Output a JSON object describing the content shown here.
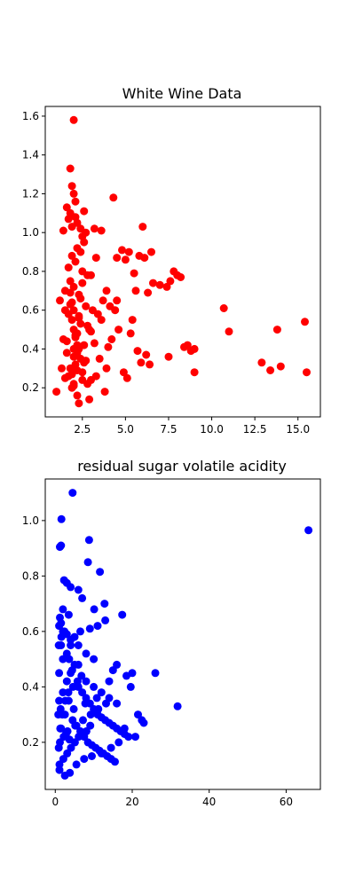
{
  "chart_data": [
    {
      "type": "scatter",
      "title": "White Wine Data",
      "xlabel": "",
      "ylabel": "",
      "xlim": [
        0.35,
        16.3
      ],
      "ylim": [
        0.05,
        1.65
      ],
      "xticks": [
        2.5,
        5.0,
        7.5,
        10.0,
        12.5,
        15.0
      ],
      "xtick_labels": [
        "2.5",
        "5.0",
        "7.5",
        "10.0",
        "12.5",
        "15.0"
      ],
      "yticks": [
        0.2,
        0.4,
        0.6,
        0.8,
        1.0,
        1.2,
        1.4,
        1.6
      ],
      "ytick_labels": [
        "0.2",
        "0.4",
        "0.6",
        "0.8",
        "1.0",
        "1.2",
        "1.4",
        "1.6"
      ],
      "color": "#ff0000",
      "grid": false,
      "legend": "none",
      "x": [
        2.0,
        1.8,
        1.9,
        2.0,
        2.1,
        1.6,
        1.7,
        2.6,
        1.8,
        2.1,
        4.3,
        2.2,
        1.9,
        1.4,
        2.4,
        3.2,
        2.7,
        2.5,
        3.6,
        6.0,
        4.8,
        5.2,
        6.5,
        5.8,
        6.1,
        4.5,
        5.0,
        7.8,
        8.0,
        5.5,
        6.6,
        7.0,
        7.4,
        7.6,
        8.2,
        5.6,
        6.3,
        10.7,
        11.0,
        15.4,
        13.8,
        12.9,
        13.4,
        14.0,
        15.5,
        8.6,
        8.4,
        9.0,
        8.8,
        9.0,
        7.5,
        5.7,
        6.2,
        6.4,
        5.9,
        5.1,
        4.9,
        3.9,
        3.8,
        4.0,
        3.5,
        1.0,
        1.3,
        1.5,
        2.8,
        3.0,
        3.3,
        4.2,
        4.6,
        5.3,
        5.4,
        4.4,
        3.7,
        2.3,
        2.9,
        1.9,
        2.2,
        2.0,
        1.7,
        1.8,
        2.5,
        2.4,
        2.1,
        2.3,
        2.6,
        1.6,
        1.4,
        2.0,
        2.2,
        1.9,
        2.8,
        3.1,
        3.4,
        2.7,
        1.2,
        1.5,
        2.0,
        2.3,
        1.8,
        2.5,
        3.0,
        2.1,
        1.9,
        2.4,
        2.2,
        2.6,
        1.7,
        2.0,
        2.3,
        2.9,
        1.6,
        2.1,
        3.2,
        2.4,
        1.8,
        2.0,
        2.7,
        2.2,
        1.9,
        2.5,
        3.6,
        4.1,
        4.5,
        3.9,
        2.8,
        3.3,
        2.0,
        1.7,
        2.2,
        2.4,
        1.9,
        2.1,
        2.6,
        2.0,
        2.3,
        1.8,
        2.5,
        3.0,
        1.5,
        2.2
      ],
      "y": [
        1.58,
        1.33,
        1.24,
        1.2,
        1.16,
        1.13,
        1.07,
        1.11,
        1.1,
        1.08,
        1.18,
        1.05,
        1.03,
        1.01,
        1.02,
        1.02,
        1.0,
        0.98,
        1.01,
        1.03,
        0.91,
        0.9,
        0.9,
        0.88,
        0.87,
        0.87,
        0.86,
        0.8,
        0.78,
        0.79,
        0.74,
        0.73,
        0.72,
        0.75,
        0.77,
        0.7,
        0.69,
        0.61,
        0.49,
        0.54,
        0.5,
        0.33,
        0.29,
        0.31,
        0.28,
        0.42,
        0.41,
        0.4,
        0.39,
        0.28,
        0.36,
        0.39,
        0.37,
        0.32,
        0.33,
        0.25,
        0.28,
        0.3,
        0.18,
        0.41,
        0.35,
        0.18,
        0.3,
        0.25,
        0.22,
        0.24,
        0.26,
        0.45,
        0.5,
        0.48,
        0.55,
        0.6,
        0.65,
        0.12,
        0.14,
        0.2,
        0.16,
        0.22,
        0.26,
        0.3,
        0.28,
        0.35,
        0.32,
        0.4,
        0.42,
        0.38,
        0.45,
        0.5,
        0.48,
        0.55,
        0.52,
        0.6,
        0.58,
        0.62,
        0.65,
        0.7,
        0.72,
        0.68,
        0.75,
        0.8,
        0.78,
        0.85,
        0.88,
        0.9,
        0.92,
        0.95,
        0.82,
        0.6,
        0.57,
        0.5,
        0.44,
        0.47,
        0.43,
        0.66,
        0.63,
        0.36,
        0.34,
        0.29,
        0.27,
        0.24,
        0.55,
        0.62,
        0.65,
        0.7,
        0.78,
        0.87,
        0.4,
        0.58,
        0.38,
        0.53,
        0.64,
        0.46,
        0.33,
        0.21,
        0.56,
        0.69,
        0.74,
        0.49,
        0.6,
        0.42
      ]
    },
    {
      "type": "scatter",
      "title": "residual sugar volatile acidity",
      "xlabel": "",
      "ylabel": "",
      "xlim": [
        -2.6,
        68.9
      ],
      "ylim": [
        0.03,
        1.15
      ],
      "xticks": [
        0,
        20,
        40,
        60
      ],
      "xtick_labels": [
        "0",
        "20",
        "40",
        "60"
      ],
      "yticks": [
        0.2,
        0.4,
        0.6,
        0.8,
        1.0
      ],
      "ytick_labels": [
        "0.2",
        "0.4",
        "0.6",
        "0.8",
        "1.0"
      ],
      "color": "#0000ff",
      "grid": false,
      "legend": "none",
      "x": [
        4.5,
        1.6,
        1.2,
        1.5,
        8.8,
        65.8,
        8.5,
        11.6,
        2.3,
        3.0,
        4.0,
        6.0,
        7.0,
        10.1,
        12.8,
        17.4,
        13.0,
        11.0,
        9.0,
        6.5,
        5.0,
        3.5,
        2.0,
        1.0,
        1.5,
        26.0,
        31.8,
        18.5,
        20.0,
        19.6,
        21.5,
        22.5,
        23.0,
        20.8,
        16.0,
        15.0,
        14.0,
        10.0,
        8.0,
        6.0,
        4.0,
        3.0,
        2.0,
        1.5,
        1.2,
        0.9,
        1.1,
        2.5,
        3.8,
        5.5,
        7.5,
        9.5,
        12.0,
        14.5,
        16.5,
        18.0,
        1.0,
        2.0,
        3.0,
        4.0,
        5.0,
        6.0,
        7.0,
        8.0,
        9.0,
        10.0,
        11.0,
        12.0,
        13.0,
        14.0,
        15.0,
        16.0,
        17.0,
        18.0,
        19.0,
        1.5,
        2.5,
        3.5,
        4.5,
        5.5,
        6.5,
        7.5,
        8.5,
        9.5,
        10.5,
        11.5,
        12.5,
        13.5,
        14.5,
        15.5,
        1.0,
        2.0,
        3.0,
        4.0,
        6.0,
        8.0,
        10.0,
        12.0,
        14.0,
        16.0,
        1.2,
        2.2,
        3.2,
        5.2,
        7.2,
        9.2,
        11.2,
        13.2,
        1.8,
        4.8,
        7.8,
        10.8,
        1.1,
        2.1,
        3.1,
        4.1,
        5.1,
        6.1,
        8.1,
        9.1,
        0.8,
        1.4,
        2.6,
        3.4,
        4.6,
        5.8,
        6.8,
        0.9,
        1.6,
        2.4,
        3.6,
        4.4,
        1.3,
        2.8,
        3.7
      ],
      "y": [
        1.1,
        1.005,
        0.905,
        0.91,
        0.93,
        0.965,
        0.85,
        0.815,
        0.785,
        0.775,
        0.76,
        0.75,
        0.72,
        0.68,
        0.7,
        0.66,
        0.64,
        0.62,
        0.61,
        0.6,
        0.58,
        0.66,
        0.68,
        0.62,
        0.55,
        0.45,
        0.33,
        0.44,
        0.45,
        0.4,
        0.3,
        0.28,
        0.27,
        0.22,
        0.48,
        0.46,
        0.42,
        0.5,
        0.52,
        0.55,
        0.57,
        0.59,
        0.6,
        0.63,
        0.65,
        0.18,
        0.1,
        0.08,
        0.09,
        0.12,
        0.14,
        0.15,
        0.16,
        0.18,
        0.2,
        0.25,
        0.35,
        0.38,
        0.42,
        0.45,
        0.48,
        0.4,
        0.38,
        0.36,
        0.34,
        0.32,
        0.3,
        0.29,
        0.28,
        0.27,
        0.26,
        0.25,
        0.24,
        0.23,
        0.22,
        0.25,
        0.3,
        0.35,
        0.28,
        0.26,
        0.24,
        0.22,
        0.2,
        0.19,
        0.18,
        0.17,
        0.16,
        0.15,
        0.14,
        0.13,
        0.45,
        0.5,
        0.52,
        0.55,
        0.48,
        0.42,
        0.4,
        0.38,
        0.36,
        0.34,
        0.2,
        0.22,
        0.24,
        0.26,
        0.28,
        0.3,
        0.32,
        0.34,
        0.3,
        0.32,
        0.34,
        0.36,
        0.12,
        0.14,
        0.16,
        0.18,
        0.2,
        0.22,
        0.24,
        0.26,
        0.3,
        0.32,
        0.35,
        0.38,
        0.4,
        0.42,
        0.44,
        0.55,
        0.58,
        0.6,
        0.5,
        0.46,
        0.25,
        0.23,
        0.21
      ]
    }
  ]
}
